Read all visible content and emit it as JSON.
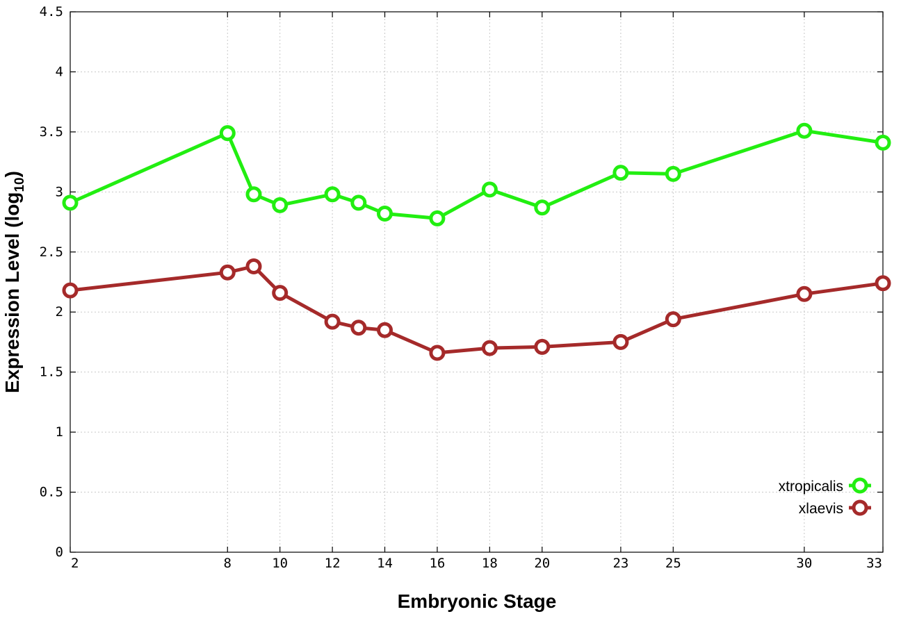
{
  "chart_data": {
    "type": "line",
    "xlabel": "Embryonic Stage",
    "ylabel_main": "Expression Level (log",
    "ylabel_sub": "10",
    "ylabel_close": ")",
    "ylim": [
      0,
      4.5
    ],
    "xlim": [
      2,
      33
    ],
    "x_ticks": [
      2,
      8,
      10,
      12,
      14,
      16,
      18,
      20,
      23,
      25,
      30,
      33
    ],
    "y_ticks": [
      0,
      0.5,
      1,
      1.5,
      2,
      2.5,
      3,
      3.5,
      4,
      4.5
    ],
    "y_tick_labels": [
      "0",
      "0.5",
      "1",
      "1.5",
      "2",
      "2.5",
      "3",
      "3.5",
      "4",
      "4.5"
    ],
    "grid": true,
    "legend_position": "bottom-right",
    "x": [
      2,
      8,
      9,
      10,
      12,
      13,
      14,
      16,
      18,
      20,
      23,
      25,
      30,
      33
    ],
    "series": [
      {
        "name": "xtropicalis",
        "color": "#22ee11",
        "values": [
          2.91,
          3.49,
          2.98,
          2.89,
          2.98,
          2.91,
          2.82,
          2.78,
          3.02,
          2.87,
          3.16,
          3.15,
          3.51,
          3.41
        ]
      },
      {
        "name": "xlaevis",
        "color": "#a52a2a",
        "values": [
          2.18,
          2.33,
          2.38,
          2.16,
          1.92,
          1.87,
          1.85,
          1.66,
          1.7,
          1.71,
          1.75,
          1.94,
          2.15,
          2.24
        ]
      }
    ]
  }
}
